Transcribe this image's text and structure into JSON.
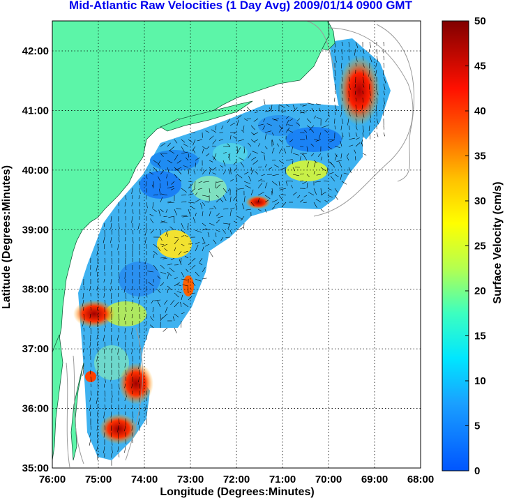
{
  "title": "Mid-Atlantic Raw Velocities (1 Day Avg) 2009/01/14 0900 GMT",
  "x_axis": {
    "label": "Longitude (Degrees:Minutes)",
    "ticks": [
      "76:00",
      "75:00",
      "74:00",
      "73:00",
      "72:00",
      "71:00",
      "70:00",
      "69:00",
      "68:00"
    ]
  },
  "y_axis": {
    "label": "Latitude (Degrees:Minutes)",
    "ticks": [
      "42:00",
      "41:00",
      "40:00",
      "39:00",
      "38:00",
      "37:00",
      "36:00",
      "35:00"
    ]
  },
  "colorbar": {
    "label": "Surface Velocity (cm/s)",
    "ticks": [
      "50",
      "45",
      "40",
      "35",
      "30",
      "25",
      "20",
      "15",
      "10",
      "5",
      "0"
    ],
    "min": 0,
    "max": 50
  },
  "colors": {
    "land": "#5cf5a8",
    "ocean": "#ffffff",
    "title": "#0000ee",
    "grid": "#000000",
    "bathymetry": "#9a9a9a"
  }
}
